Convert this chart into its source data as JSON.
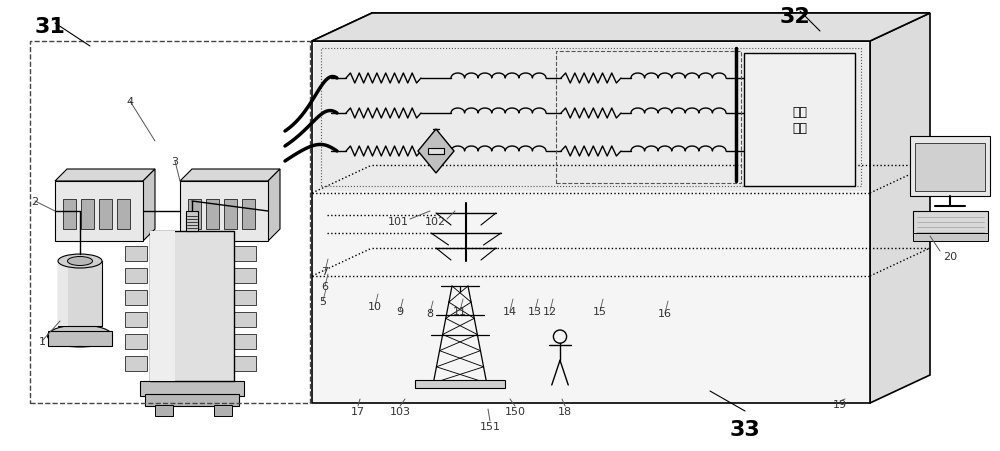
{
  "bg_color": "#ffffff",
  "lc": "#000000",
  "gray1": "#e8e8e8",
  "gray2": "#d0d0d0",
  "gray3": "#b8b8b8",
  "gray4": "#909090"
}
